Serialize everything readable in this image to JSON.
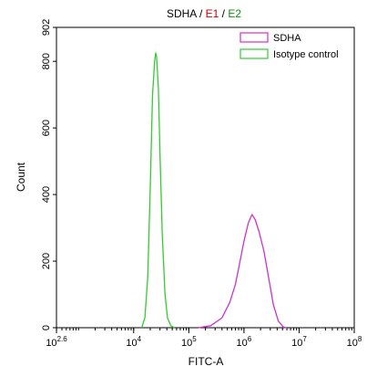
{
  "chart_data": {
    "type": "line",
    "title_parts": [
      {
        "text": "SDHA",
        "color": "#000000"
      },
      {
        "text": " / ",
        "color": "#000000"
      },
      {
        "text": "E1",
        "color": "#cc0000"
      },
      {
        "text": " / ",
        "color": "#000000"
      },
      {
        "text": "E2",
        "color": "#009900"
      }
    ],
    "xlabel": "FITC-A",
    "ylabel": "Count",
    "x_scale": "log10",
    "xlim": [
      398.1,
      100000000
    ],
    "ylim": [
      0,
      902
    ],
    "x_ticks": [
      {
        "base": "10",
        "exp": "2.6",
        "value": 398.1
      },
      {
        "base": "10",
        "exp": "4",
        "value": 10000
      },
      {
        "base": "10",
        "exp": "5",
        "value": 100000
      },
      {
        "base": "10",
        "exp": "6",
        "value": 1000000
      },
      {
        "base": "10",
        "exp": "7",
        "value": 10000000
      },
      {
        "base": "10",
        "exp": "8",
        "value": 100000000
      }
    ],
    "y_ticks": [
      "0",
      "200",
      "400",
      "600",
      "800",
      "902"
    ],
    "grid": false,
    "legend_position": "top-right",
    "series": [
      {
        "name": "SDHA",
        "color": "#cc33cc",
        "points": [
          [
            150000,
            0
          ],
          [
            250000,
            6
          ],
          [
            400000,
            30
          ],
          [
            550000,
            75
          ],
          [
            700000,
            130
          ],
          [
            850000,
            200
          ],
          [
            1000000,
            260
          ],
          [
            1200000,
            315
          ],
          [
            1400000,
            340
          ],
          [
            1600000,
            325
          ],
          [
            1900000,
            285
          ],
          [
            2300000,
            230
          ],
          [
            2800000,
            150
          ],
          [
            3400000,
            70
          ],
          [
            4200000,
            20
          ],
          [
            5200000,
            2
          ],
          [
            6000000,
            0
          ]
        ]
      },
      {
        "name": "Isotype control",
        "color": "#33cc33",
        "points": [
          [
            14000,
            0
          ],
          [
            16000,
            30
          ],
          [
            18000,
            150
          ],
          [
            20000,
            420
          ],
          [
            22000,
            700
          ],
          [
            24000,
            800
          ],
          [
            25000,
            825
          ],
          [
            26000,
            815
          ],
          [
            28000,
            720
          ],
          [
            30000,
            520
          ],
          [
            33000,
            280
          ],
          [
            37000,
            100
          ],
          [
            41000,
            30
          ],
          [
            47000,
            6
          ],
          [
            55000,
            0
          ]
        ]
      }
    ]
  }
}
